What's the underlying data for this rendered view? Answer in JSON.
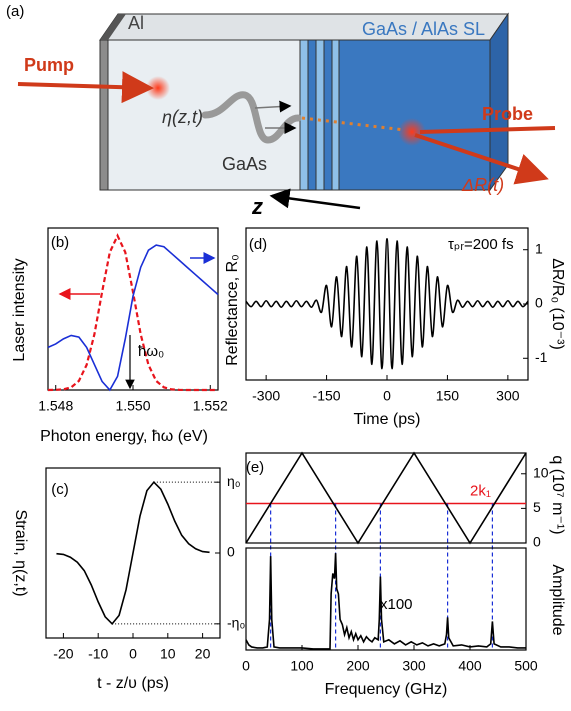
{
  "diagram": {
    "label": "(a)",
    "al": "Al",
    "superlattice": "GaAs / AlAs SL",
    "pump": "Pump",
    "strain": "η(z,t)",
    "substrate": "GaAs",
    "probe": "Probe",
    "signal": "ΔR(t)",
    "axis": "z"
  },
  "chart_data": [
    {
      "type": "line",
      "label": "(b)",
      "xlabel": "Photon energy, ħω (eV)",
      "ylabel": "Laser intensity",
      "y2label": "Reflectance, R₀",
      "annotation": "ħω₀",
      "xlim": [
        1.5478,
        1.5522
      ],
      "xticks": [
        1.548,
        {
          "value": 1.55,
          "label": "1.550"
        },
        1.552
      ],
      "ylim": [
        0,
        1.05
      ],
      "y2lim": [
        0,
        0.95
      ],
      "x": [
        1.5478,
        1.548,
        1.5482,
        1.5484,
        1.5486,
        1.5488,
        1.549,
        1.5492,
        1.5494,
        1.5496,
        1.5498,
        1.55,
        1.5502,
        1.5504,
        1.5506,
        1.5508,
        1.551,
        1.5512,
        1.5514,
        1.5516,
        1.5518,
        1.552,
        1.5522
      ],
      "series": [
        {
          "name": "Laser intensity",
          "color": "#e8141c",
          "linestyle": "dashed",
          "values": [
            0,
            0.001,
            0.004,
            0.017,
            0.059,
            0.163,
            0.36,
            0.635,
            0.893,
            1,
            0.893,
            0.635,
            0.36,
            0.163,
            0.059,
            0.017,
            0.004,
            0.001,
            0,
            0,
            0,
            0,
            0
          ]
        },
        {
          "name": "Reflectance",
          "color": "#1a2fd6",
          "axis": "y2",
          "values": [
            0.25,
            0.27,
            0.3,
            0.32,
            0.31,
            0.25,
            0.15,
            0.05,
            0,
            0.08,
            0.3,
            0.55,
            0.72,
            0.82,
            0.85,
            0.84,
            0.8,
            0.76,
            0.72,
            0.68,
            0.64,
            0.6,
            0.56
          ]
        }
      ]
    },
    {
      "type": "line",
      "label": "(c)",
      "xlabel": "t - z/υ (ps)",
      "ylabel": "Strain, η(z,t)",
      "xlim": [
        -25,
        25
      ],
      "xticks": [
        -20,
        -10,
        0,
        10,
        20
      ],
      "ylim": [
        -1.2,
        1.2
      ],
      "yticks": [
        {
          "value": 1,
          "label": "η₀"
        },
        0,
        {
          "value": -1,
          "label": "-η₀"
        }
      ],
      "x": [
        -22,
        -20,
        -18,
        -16,
        -14,
        -12,
        -10,
        -8,
        -6,
        -4,
        -2,
        0,
        2,
        4,
        6,
        8,
        10,
        12,
        14,
        16,
        18,
        20,
        22
      ],
      "series": [
        {
          "name": "Strain",
          "color": "#000000",
          "values": [
            -0.01,
            -0.02,
            -0.06,
            -0.13,
            -0.25,
            -0.45,
            -0.69,
            -0.9,
            -1,
            -0.88,
            -0.52,
            0,
            0.52,
            0.88,
            1,
            0.9,
            0.69,
            0.45,
            0.25,
            0.13,
            0.06,
            0.02,
            0.01
          ]
        }
      ]
    },
    {
      "type": "line",
      "label": "(d)",
      "xlabel": "Time (ps)",
      "ylabel": "ΔR/R₀ (10⁻³)",
      "annotation": "τₚᵣ=200 fs",
      "xlim": [
        -350,
        350
      ],
      "xticks": [
        -300,
        -150,
        0,
        150,
        300
      ],
      "ylim": [
        -1.4,
        1.4
      ],
      "yticks": [
        1,
        0,
        -1
      ],
      "x": [
        -350,
        -337.5,
        -325,
        -312.5,
        -300,
        -287.5,
        -275,
        -262.5,
        -250,
        -237.5,
        -225,
        -212.5,
        -200,
        -187.5,
        -175,
        -162.5,
        -150,
        -137.5,
        -125,
        -112.5,
        -100,
        -87.5,
        -75,
        -62.5,
        -50,
        -37.5,
        -25,
        -12.5,
        0,
        12.5,
        25,
        37.5,
        50,
        62.5,
        75,
        87.5,
        100,
        112.5,
        125,
        137.5,
        150,
        162.5,
        175,
        187.5,
        200,
        212.5,
        225,
        237.5,
        250,
        262.5,
        275,
        287.5,
        300,
        312.5,
        325,
        337.5,
        350
      ],
      "series": [
        {
          "name": "ΔR/R₀",
          "color": "#000000",
          "values": [
            0.05,
            -0.05,
            0.05,
            -0.05,
            0.06,
            -0.05,
            0.05,
            -0.06,
            0.05,
            -0.05,
            0.06,
            -0.05,
            0.05,
            -0.06,
            0.07,
            -0.15,
            0.34,
            -0.42,
            0.5,
            -0.6,
            0.69,
            -0.79,
            0.88,
            -0.97,
            1.05,
            -1.11,
            1.16,
            -1.19,
            1.2,
            -1.19,
            1.16,
            -1.11,
            1.05,
            -0.97,
            0.88,
            -0.79,
            0.69,
            -0.6,
            0.5,
            -0.42,
            0.34,
            -0.15,
            0.07,
            -0.06,
            0.05,
            -0.05,
            0.06,
            -0.05,
            0.05,
            -0.06,
            0.05,
            -0.05,
            0.06,
            -0.05,
            0.05,
            -0.05,
            0.05
          ]
        }
      ]
    },
    {
      "type": "line",
      "label": "(e)",
      "ylabel": "q (10⁷ m⁻¹)",
      "xlim": [
        0,
        500
      ],
      "ylim": [
        0,
        13
      ],
      "yticks": [
        0,
        5,
        10
      ],
      "x": [
        0,
        100,
        200,
        300,
        400,
        500
      ],
      "series": [
        {
          "name": "q",
          "color": "#000000",
          "values": [
            0,
            13,
            0,
            13,
            0,
            13
          ]
        }
      ],
      "hline": {
        "value": 5.7,
        "label": "2k₁",
        "color": "#e8141c"
      },
      "vlines": [
        44,
        160,
        240,
        360,
        440
      ],
      "vline_color": "#1a2fd6"
    },
    {
      "type": "line",
      "xlabel": "Frequency (GHz)",
      "ylabel": "Amplitude",
      "annotation": "x100",
      "xlim": [
        0,
        500
      ],
      "xticks": [
        0,
        100,
        200,
        300,
        400,
        500
      ],
      "ylim": [
        0,
        1
      ],
      "x": [
        0,
        5,
        10,
        20,
        30,
        38,
        42,
        44,
        46,
        50,
        60,
        80,
        100,
        120,
        140,
        150,
        152,
        155,
        158,
        160,
        162,
        165,
        168,
        172,
        176,
        180,
        184,
        188,
        192,
        196,
        200,
        205,
        210,
        215,
        220,
        225,
        230,
        236,
        238,
        240,
        242,
        246,
        255,
        265,
        275,
        285,
        295,
        305,
        315,
        325,
        335,
        345,
        355,
        358,
        360,
        362,
        370,
        385,
        400,
        415,
        430,
        437,
        440,
        443,
        455,
        470,
        485,
        500
      ],
      "series": [
        {
          "name": "Amplitude",
          "color": "#000000",
          "values": [
            0.1,
            0.05,
            0.03,
            0.02,
            0.02,
            0.03,
            0.3,
            0.92,
            0.3,
            0.03,
            0.02,
            0.02,
            0.02,
            0.01,
            0.01,
            0.01,
            0.55,
            0.75,
            0.7,
            0.95,
            0.6,
            0.55,
            0.3,
            0.25,
            0.15,
            0.22,
            0.12,
            0.18,
            0.1,
            0.16,
            0.1,
            0.14,
            0.08,
            0.13,
            0.1,
            0.08,
            0.12,
            0.1,
            0.3,
            0.72,
            0.3,
            0.08,
            0.1,
            0.06,
            0.09,
            0.05,
            0.08,
            0.05,
            0.07,
            0.04,
            0.06,
            0.04,
            0.06,
            0.15,
            0.32,
            0.12,
            0.04,
            0.05,
            0.03,
            0.04,
            0.03,
            0.06,
            0.28,
            0.06,
            0.03,
            0.03,
            0.02,
            0.02
          ]
        }
      ]
    }
  ]
}
